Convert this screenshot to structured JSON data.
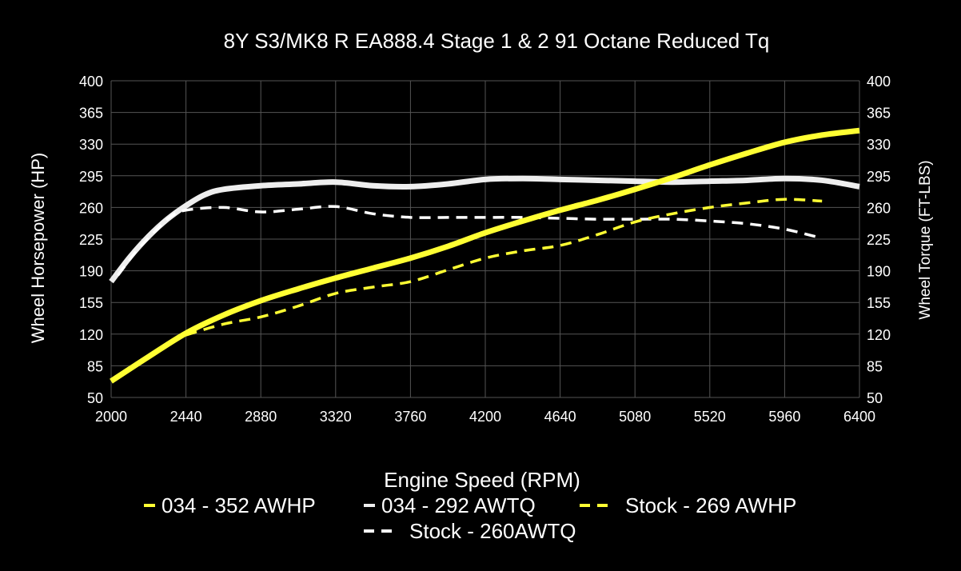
{
  "chart_data": {
    "type": "line",
    "title": "8Y S3/MK8 R EA888.4 Stage 1 & 2 91 Octane Reduced Tq",
    "xlabel": "Engine Speed (RPM)",
    "ylabel": "Wheel Horsepower (HP)",
    "y2label": "Wheel Torque (FT-LBS)",
    "xlim": [
      2000,
      6400
    ],
    "ylim": [
      50,
      400
    ],
    "y2lim": [
      50,
      400
    ],
    "x_ticks": [
      "2000",
      "2440",
      "2880",
      "3320",
      "3760",
      "4200",
      "4640",
      "5080",
      "5520",
      "5960",
      "6400"
    ],
    "y_ticks": [
      "400",
      "365",
      "330",
      "295",
      "260",
      "225",
      "190",
      "155",
      "120",
      "85",
      "50"
    ],
    "grid": true,
    "legend_placement": "bottom",
    "background": "#000000",
    "series": [
      {
        "name": "034 - 352 AWHP",
        "color": "#ffff33",
        "style": "solid",
        "axis": "left",
        "x": [
          2000,
          2220,
          2440,
          2660,
          2880,
          3100,
          3320,
          3540,
          3760,
          3980,
          4200,
          4420,
          4640,
          4860,
          5080,
          5300,
          5520,
          5740,
          5960,
          6180,
          6400
        ],
        "y": [
          68,
          95,
          121,
          141,
          157,
          170,
          182,
          193,
          204,
          217,
          232,
          245,
          257,
          268,
          280,
          293,
          307,
          320,
          332,
          340,
          345
        ]
      },
      {
        "name": "034 - 292 AWTQ",
        "color": "#eeeeee",
        "style": "solid",
        "axis": "right",
        "x": [
          2000,
          2110,
          2220,
          2330,
          2440,
          2550,
          2660,
          2880,
          3100,
          3320,
          3540,
          3760,
          3980,
          4200,
          4420,
          4640,
          4860,
          5080,
          5300,
          5520,
          5740,
          5960,
          6180,
          6400
        ],
        "y": [
          178,
          205,
          228,
          247,
          262,
          274,
          280,
          284,
          286,
          288,
          284,
          283,
          286,
          291,
          292,
          291,
          290,
          289,
          288,
          289,
          290,
          292,
          290,
          283
        ]
      },
      {
        "name": "Stock - 269 AWHP",
        "color": "#ffff33",
        "style": "dashed",
        "axis": "left",
        "x": [
          2440,
          2660,
          2880,
          3100,
          3320,
          3540,
          3760,
          3980,
          4200,
          4420,
          4640,
          4860,
          5080,
          5300,
          5520,
          5740,
          5960,
          6180
        ],
        "y": [
          119,
          131,
          139,
          151,
          165,
          172,
          178,
          191,
          204,
          212,
          218,
          230,
          244,
          253,
          260,
          265,
          269,
          267
        ]
      },
      {
        "name": "Stock - 260AWTQ",
        "color": "#ffffff",
        "style": "dashed",
        "axis": "right",
        "x": [
          2040,
          2150,
          2260,
          2350,
          2440,
          2660,
          2880,
          3100,
          3320,
          3540,
          3760,
          3980,
          4200,
          4420,
          4640,
          4860,
          5080,
          5300,
          5520,
          5740,
          5960,
          6180
        ],
        "y": [
          185,
          212,
          234,
          250,
          257,
          260,
          255,
          258,
          261,
          253,
          249,
          249,
          249,
          249,
          248,
          247,
          247,
          247,
          245,
          242,
          236,
          226
        ]
      }
    ]
  }
}
